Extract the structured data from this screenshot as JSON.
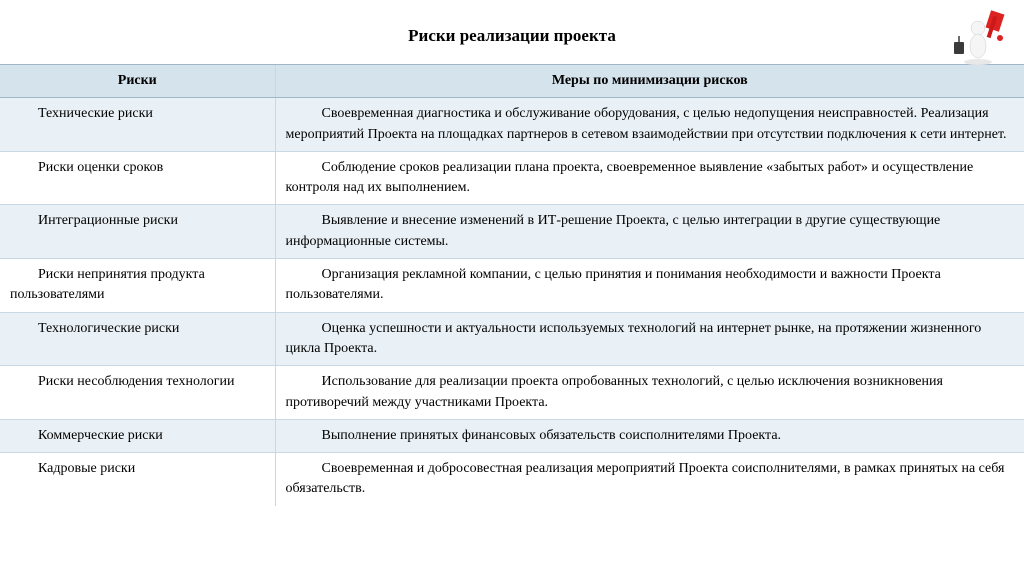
{
  "title": "Риски реализации проекта",
  "columns": {
    "risks": "Риски",
    "measures": "Меры по минимизации рисков"
  },
  "header_bg": "#d5e3ed",
  "row_alt_bg": "#eaf1f6",
  "row_plain_bg": "#ffffff",
  "border_color": "#c9d8e3",
  "font_family": "Times New Roman",
  "title_fontsize": 17,
  "body_fontsize": 14,
  "rows": [
    {
      "alt": true,
      "risk": "Технические риски",
      "measure": "Своевременная диагностика и обслуживание оборудования, с целью недопущения неисправностей.  Реализация мероприятий Проекта на площадках партнеров в сетевом взаимодействии при отсутствии подключения к сети интернет."
    },
    {
      "alt": false,
      "risk": "Риски оценки сроков",
      "measure": "Соблюдение сроков реализации плана проекта, своевременное выявление «забытых работ» и осуществление контроля над их выполнением."
    },
    {
      "alt": true,
      "risk": "Интеграционные риски",
      "measure": "Выявление и внесение изменений в ИТ-решение Проекта, с целью интеграции в другие существующие информационные системы."
    },
    {
      "alt": false,
      "risk": "Риски непринятия продукта пользователями",
      "measure": "Организация рекламной компании, с целью принятия и понимания необходимости и важности Проекта пользователями."
    },
    {
      "alt": true,
      "risk": "Технологические риски",
      "measure": "Оценка успешности и актуальности используемых технологий на интернет рынке, на протяжении жизненного цикла Проекта."
    },
    {
      "alt": false,
      "risk": "Риски несоблюдения технологии",
      "measure": "Использование для реализации проекта опробованных технологий, с целью исключения возникновения противоречий между участниками Проекта."
    },
    {
      "alt": true,
      "risk": "Коммерческие риски",
      "measure": "Выполнение принятых финансовых обязательств соисполнителями Проекта."
    },
    {
      "alt": false,
      "risk": "Кадровые риски",
      "measure": "Своевременная и добросовестная реализация мероприятий Проекта соисполнителями, в рамках принятых на себя обязательств."
    }
  ],
  "corner_icon": "decorative-3d-figure"
}
